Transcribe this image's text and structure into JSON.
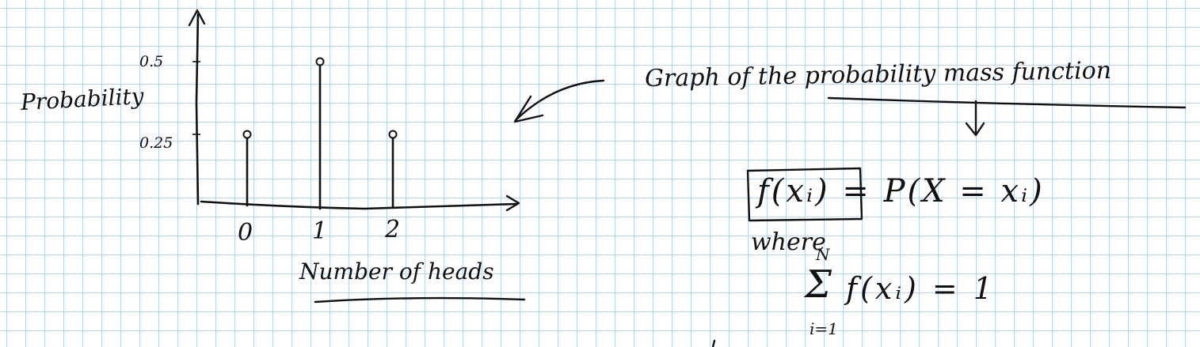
{
  "chart_data": {
    "type": "stem",
    "categories": [
      "0",
      "1",
      "2"
    ],
    "values": [
      0.25,
      0.5,
      0.25
    ],
    "ylabel": "Probability",
    "xlabel": "Number of heads",
    "y_ticks": [
      "0.5",
      "0.25"
    ],
    "ylim": [
      0,
      0.5
    ],
    "grid": false
  },
  "annotations": {
    "note": "Graph of the probability mass function",
    "formula": "f(xᵢ) = P(X = xᵢ)",
    "where": "where",
    "sum_expr": "f(xᵢ)  = 1",
    "sum_symbol": "Σ",
    "sum_upper": "N",
    "sum_lower": "i=1"
  },
  "colors": {
    "ink": "#111111",
    "grid": "#b9d4ec",
    "paper": "#ffffff"
  }
}
